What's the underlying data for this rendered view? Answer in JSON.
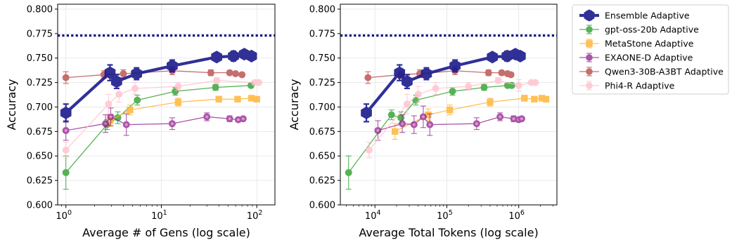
{
  "chart_data": [
    {
      "type": "line",
      "xscale": "log",
      "xlabel": "Average # of Gens (log scale)",
      "ylabel": "Accuracy",
      "xlim": [
        0.82,
        155
      ],
      "ylim": [
        0.6,
        0.805
      ],
      "xticks": [
        {
          "v": 1,
          "label": "10",
          "sup": "0"
        },
        {
          "v": 10,
          "label": "10",
          "sup": "1"
        },
        {
          "v": 100,
          "label": "10",
          "sup": "2"
        }
      ],
      "yticks": [
        "0.600",
        "0.625",
        "0.650",
        "0.675",
        "0.700",
        "0.725",
        "0.750",
        "0.775",
        "0.800"
      ],
      "grid": true,
      "reference_line": 0.773,
      "series": [
        {
          "name": "gpt-oss-20b Adaptive",
          "x": [
            1,
            2.7,
            3.5,
            5.6,
            14,
            37,
            87
          ],
          "y": [
            0.633,
            0.682,
            0.689,
            0.707,
            0.716,
            0.72,
            0.722
          ],
          "err": [
            0.017,
            0.005,
            0.006,
            0.005,
            0.004,
            0.003,
            0.002
          ]
        },
        {
          "name": "MetaStone Adaptive",
          "x": [
            2.9,
            4.7,
            15,
            40,
            63,
            88,
            100
          ],
          "y": [
            0.686,
            0.697,
            0.705,
            0.708,
            0.708,
            0.709,
            0.708
          ],
          "err": [
            0.006,
            0.005,
            0.004,
            0.003,
            0.002,
            0.002,
            0.002
          ]
        },
        {
          "name": "EXAONE-D Adaptive",
          "x": [
            1,
            2.6,
            2.95,
            4.3,
            13,
            30,
            52,
            64,
            72
          ],
          "y": [
            0.676,
            0.683,
            0.69,
            0.682,
            0.683,
            0.69,
            0.688,
            0.687,
            0.688
          ],
          "err": [
            0.01,
            0.009,
            0.009,
            0.011,
            0.006,
            0.004,
            0.003,
            0.002,
            0.002
          ]
        },
        {
          "name": "Qwen3-30B-A3BT Adaptive",
          "x": [
            1,
            2.5,
            4,
            13,
            33,
            52,
            60,
            70
          ],
          "y": [
            0.73,
            0.733,
            0.734,
            0.737,
            0.735,
            0.735,
            0.734,
            0.733
          ],
          "err": [
            0.006,
            0.004,
            0.004,
            0.004,
            0.003,
            0.002,
            0.002,
            0.002
          ]
        },
        {
          "name": "Phi4-R Adaptive",
          "x": [
            1,
            2.8,
            3.6,
            5.3,
            15,
            38,
            95,
            105
          ],
          "y": [
            0.656,
            0.703,
            0.713,
            0.719,
            0.721,
            0.727,
            0.725,
            0.725
          ],
          "err": [
            0.008,
            0.01,
            0.008,
            0.006,
            0.004,
            0.003,
            0.002,
            0.002
          ]
        },
        {
          "name": "Ensemble Adaptive",
          "x": [
            1,
            2.9,
            3.4,
            5.5,
            13,
            38,
            57,
            74,
            88
          ],
          "y": [
            0.694,
            0.735,
            0.726,
            0.734,
            0.742,
            0.751,
            0.752,
            0.754,
            0.752
          ],
          "err": [
            0.009,
            0.008,
            0.007,
            0.006,
            0.006,
            0.003,
            0.005,
            0.003,
            0.004
          ]
        }
      ]
    },
    {
      "type": "line",
      "xscale": "log",
      "xlabel": "Average Total Tokens (log scale)",
      "ylabel": "Accuracy",
      "xlim": [
        3300,
        3400000
      ],
      "ylim": [
        0.6,
        0.805
      ],
      "xticks": [
        {
          "v": 10000,
          "label": "10",
          "sup": "4"
        },
        {
          "v": 100000,
          "label": "10",
          "sup": "5"
        },
        {
          "v": 1000000,
          "label": "10",
          "sup": "6"
        }
      ],
      "yticks": [
        "0.600",
        "0.625",
        "0.650",
        "0.675",
        "0.700",
        "0.725",
        "0.750",
        "0.775",
        "0.800"
      ],
      "grid": true,
      "reference_line": 0.773,
      "series": [
        {
          "name": "gpt-oss-20b Adaptive",
          "x": [
            4300,
            17000,
            23000,
            37000,
            120000,
            330000,
            700000,
            800000
          ],
          "y": [
            0.633,
            0.692,
            0.689,
            0.707,
            0.716,
            0.72,
            0.722,
            0.722
          ],
          "err": [
            0.017,
            0.005,
            0.006,
            0.005,
            0.004,
            0.003,
            0.002,
            0.002
          ]
        },
        {
          "name": "MetaStone Adaptive",
          "x": [
            19000,
            55000,
            110000,
            400000,
            1200000,
            1650000,
            2100000,
            2400000
          ],
          "y": [
            0.675,
            0.692,
            0.697,
            0.705,
            0.709,
            0.708,
            0.709,
            0.708
          ],
          "err": [
            0.008,
            0.006,
            0.005,
            0.004,
            0.003,
            0.002,
            0.002,
            0.002
          ]
        },
        {
          "name": "EXAONE-D Adaptive",
          "x": [
            11000,
            24000,
            35000,
            47000,
            58000,
            260000,
            550000,
            850000,
            1000000,
            1100000
          ],
          "y": [
            0.676,
            0.683,
            0.682,
            0.69,
            0.682,
            0.683,
            0.69,
            0.688,
            0.687,
            0.688
          ],
          "err": [
            0.01,
            0.009,
            0.009,
            0.011,
            0.011,
            0.006,
            0.004,
            0.003,
            0.002,
            0.002
          ]
        },
        {
          "name": "Qwen3-30B-A3BT Adaptive",
          "x": [
            8000,
            23000,
            42000,
            130000,
            380000,
            580000,
            700000,
            780000
          ],
          "y": [
            0.73,
            0.733,
            0.734,
            0.737,
            0.735,
            0.735,
            0.734,
            0.733
          ],
          "err": [
            0.006,
            0.004,
            0.004,
            0.004,
            0.003,
            0.002,
            0.002,
            0.002
          ]
        },
        {
          "name": "Phi4-R Adaptive",
          "x": [
            8300,
            28000,
            40000,
            70000,
            200000,
            520000,
            1000000,
            1500000,
            1700000
          ],
          "y": [
            0.656,
            0.703,
            0.713,
            0.719,
            0.721,
            0.727,
            0.722,
            0.725,
            0.725
          ],
          "err": [
            0.008,
            0.01,
            0.008,
            0.006,
            0.004,
            0.003,
            0.006,
            0.002,
            0.002
          ]
        },
        {
          "name": "Ensemble Adaptive",
          "x": [
            7600,
            22000,
            28000,
            52000,
            130000,
            430000,
            690000,
            900000,
            1050000
          ],
          "y": [
            0.694,
            0.735,
            0.726,
            0.734,
            0.742,
            0.751,
            0.752,
            0.754,
            0.752
          ],
          "err": [
            0.009,
            0.008,
            0.007,
            0.006,
            0.006,
            0.003,
            0.005,
            0.003,
            0.004
          ]
        }
      ]
    }
  ],
  "legend": {
    "placement": "outside-right",
    "entries": [
      {
        "label": "Ensemble Adaptive",
        "color": "#1a1a8c"
      },
      {
        "label": "gpt-oss-20b Adaptive",
        "color": "#2ca02c"
      },
      {
        "label": "MetaStone Adaptive",
        "color": "#ffb12b"
      },
      {
        "label": "EXAONE-D Adaptive",
        "color": "#8b1f8b"
      },
      {
        "label": "Qwen3-30B-A3BT Adaptive",
        "color": "#b84a4a"
      },
      {
        "label": "Phi4-R Adaptive",
        "color": "#ffc0cb"
      }
    ]
  },
  "colors": {
    "Ensemble Adaptive": "#1a1a8c",
    "gpt-oss-20b Adaptive": "#2ca02c",
    "MetaStone Adaptive": "#ffb12b",
    "EXAONE-D Adaptive": "#8b1f8b",
    "Qwen3-30B-A3BT Adaptive": "#b84a4a",
    "Phi4-R Adaptive": "#ffc0cb",
    "reference_line": "#0a0a7a"
  }
}
